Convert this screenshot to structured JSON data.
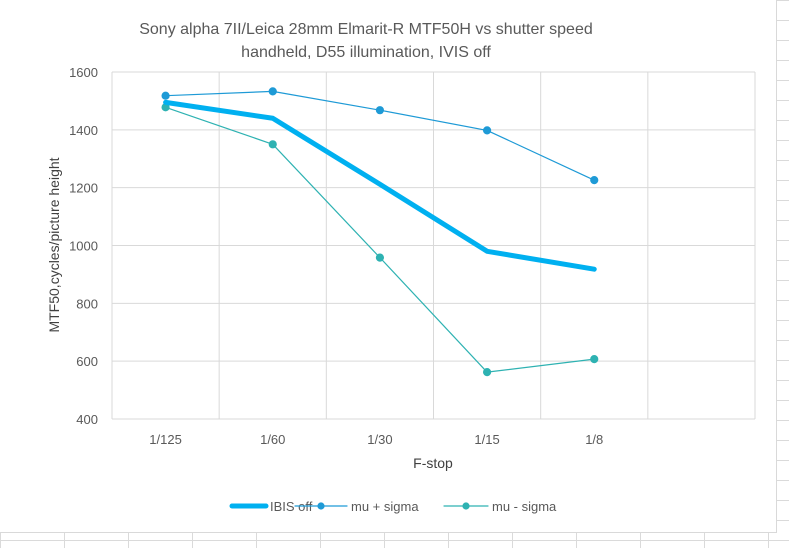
{
  "chart_data": {
    "type": "line",
    "title_lines": [
      "Sony alpha 7II/Leica 28mm Elmarit-R MTF50H vs shutter speed",
      "handheld, D55 illumination, IVIS off"
    ],
    "xlabel": "F-stop",
    "ylabel": "MTF50,cycles/picture height",
    "categories": [
      "1/125",
      "1/60",
      "1/30",
      "1/15",
      "1/8"
    ],
    "ylim": [
      400,
      1600
    ],
    "ytick_step": 200,
    "grid": true,
    "legend_position": "bottom",
    "series": [
      {
        "name": "IBIS off",
        "values": [
          1495,
          1440,
          1212,
          980,
          918
        ],
        "color": "#00b0f0",
        "style": "thick-line"
      },
      {
        "name": "mu +  sigma",
        "values": [
          1518,
          1533,
          1468,
          1398,
          1226
        ],
        "color": "#1e9ad6",
        "style": "line-marker"
      },
      {
        "name": "mu -  sigma",
        "values": [
          1478,
          1350,
          958,
          562,
          607
        ],
        "color": "#2eb2b2",
        "style": "line-marker"
      }
    ]
  }
}
